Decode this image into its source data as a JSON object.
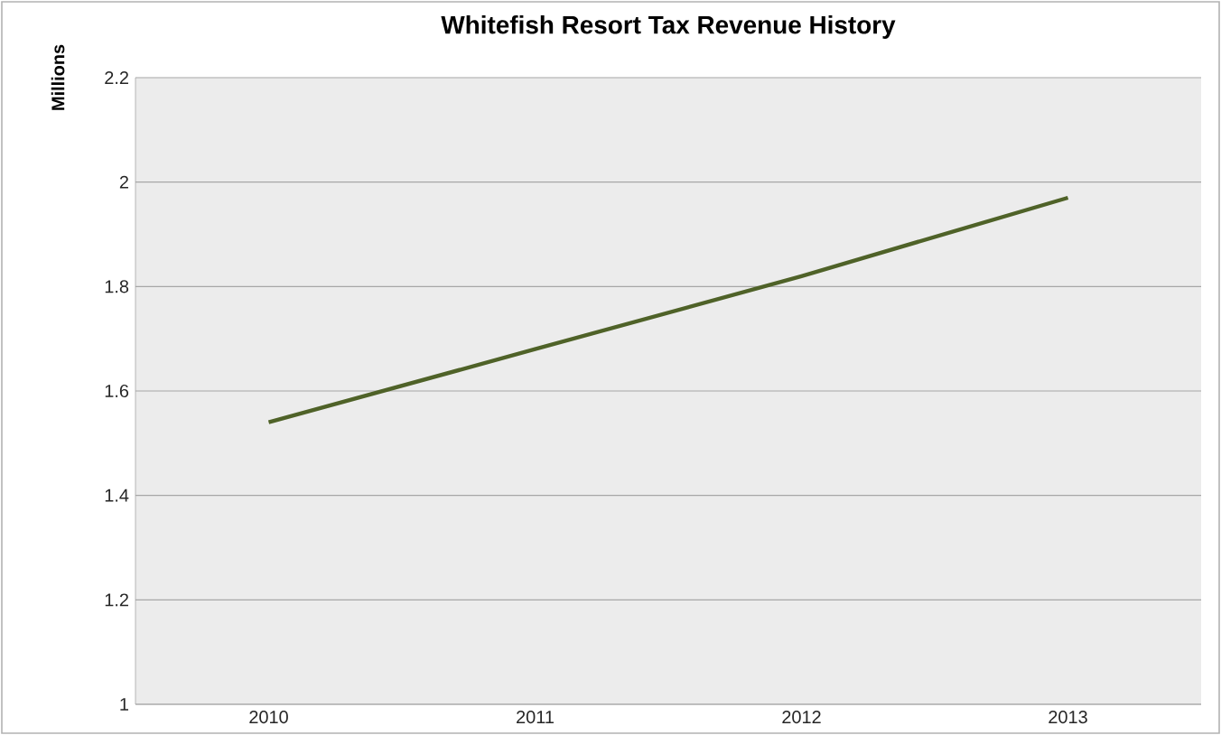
{
  "chart_data": {
    "type": "line",
    "title": "Whitefish Resort Tax Revenue History",
    "ylabel": "Millions",
    "categories": [
      "2010",
      "2011",
      "2012",
      "2013"
    ],
    "series": [
      {
        "color": "#4f6228",
        "values": [
          1.54,
          1.68,
          1.82,
          1.97
        ]
      }
    ],
    "ylim": [
      1,
      2.2
    ],
    "yticks": [
      1,
      1.2,
      1.4,
      1.6,
      1.8,
      2,
      2.2
    ],
    "grid": "y",
    "marker": "none",
    "line_style": "solid"
  }
}
